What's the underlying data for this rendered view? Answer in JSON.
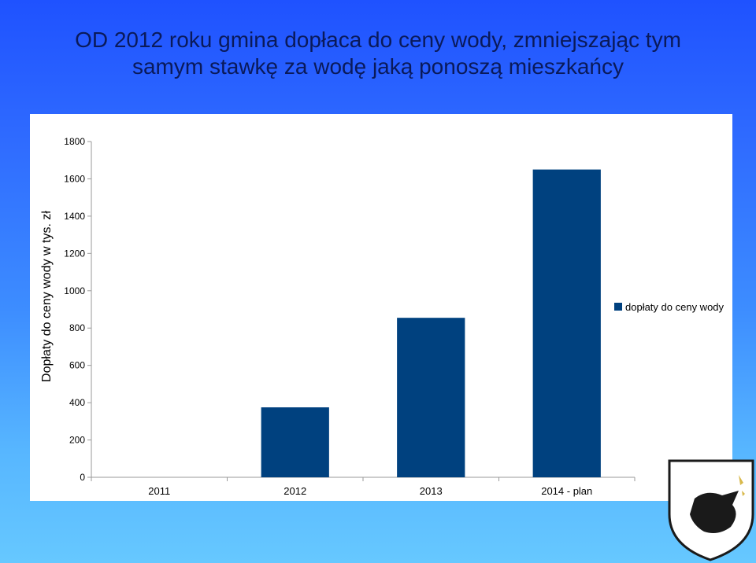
{
  "title": {
    "line1": "OD 2012 roku gmina dopłaca do ceny wody, zmniejszając tym",
    "line2": "samym stawkę za wodę jaką ponoszą mieszkańcy"
  },
  "colors": {
    "bar": "#00417f",
    "axis": "#9a9a9a"
  },
  "chart_data": {
    "type": "bar",
    "categories": [
      "2011",
      "2012",
      "2013",
      "2014 - plan"
    ],
    "series": [
      {
        "name": "dopłaty do ceny wody",
        "values": [
          0,
          375,
          855,
          1650
        ]
      }
    ],
    "ylabel": "Dopłaty do ceny wody w tys. zł",
    "xlabel": "",
    "ylim": [
      0,
      1800
    ],
    "yticks": [
      0,
      200,
      400,
      600,
      800,
      1000,
      1200,
      1400,
      1600,
      1800
    ],
    "grid": false,
    "legend": "right"
  }
}
